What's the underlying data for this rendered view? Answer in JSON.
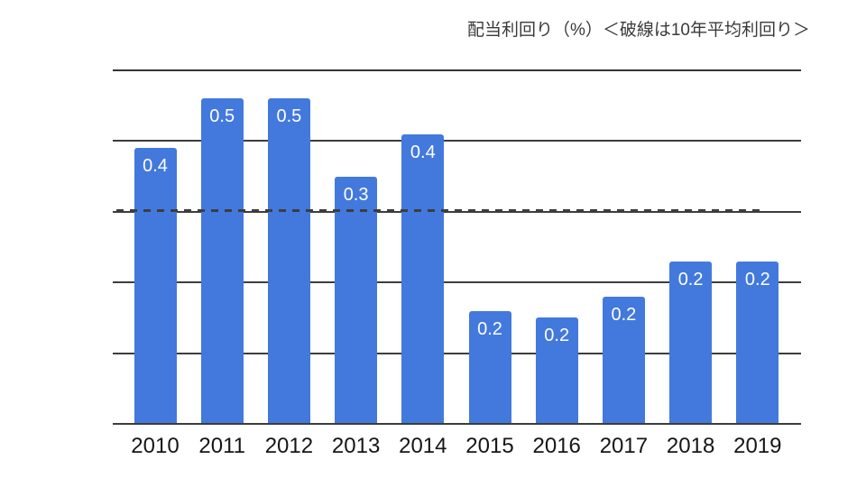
{
  "page": {
    "background_color": "#ffffff"
  },
  "chart_data": {
    "type": "bar",
    "title": "配当利回り（%）＜破線は10年平均利回り＞",
    "categories": [
      "2010",
      "2011",
      "2012",
      "2013",
      "2014",
      "2015",
      "2016",
      "2017",
      "2018",
      "2019"
    ],
    "values": [
      0.39,
      0.46,
      0.46,
      0.35,
      0.41,
      0.16,
      0.15,
      0.18,
      0.23,
      0.23
    ],
    "bar_labels": [
      "0.4",
      "0.5",
      "0.5",
      "0.3",
      "0.4",
      "0.2",
      "0.2",
      "0.2",
      "0.2",
      "0.2"
    ],
    "average_line": {
      "value": 0.3,
      "style": "dashed",
      "label_in_title": "破線は10年平均利回り"
    },
    "xlabel": "",
    "ylabel": "",
    "ylim": [
      0,
      0.5
    ],
    "ytick_step": 0.1,
    "ytick_labels_visible": false,
    "grid": true,
    "legend": "none",
    "colors": {
      "bar": "#4379DC",
      "grid": "#3d3d3d",
      "value_label": "#ffffff",
      "axis_label": "#161616",
      "title": "#3a3a3a"
    }
  }
}
